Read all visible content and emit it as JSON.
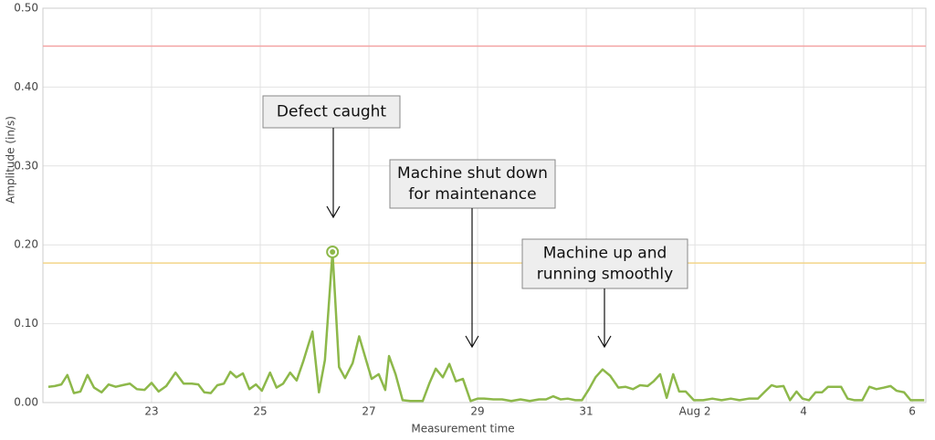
{
  "chart_data": {
    "type": "line",
    "x_label": "Measurement time",
    "y_label": "Amplitude (in/s)",
    "xlim": [
      21,
      37.25
    ],
    "ylim": [
      0,
      0.5
    ],
    "xticks": [
      23,
      25,
      27,
      29,
      31,
      {
        "value": 33,
        "label": "Aug 2"
      },
      {
        "value": 35,
        "label": "4"
      },
      {
        "value": 37,
        "label": "6"
      }
    ],
    "yticks": [
      {
        "value": 0,
        "label": "0.00"
      },
      {
        "value": 0.1,
        "label": "0.10"
      },
      {
        "value": 0.2,
        "label": "0.20"
      },
      {
        "value": 0.3,
        "label": "0.30"
      },
      {
        "value": 0.4,
        "label": "0.40"
      },
      {
        "value": 0.5,
        "label": "0.50"
      }
    ],
    "grid": true,
    "thresholds": [
      {
        "value": 0.452,
        "color": "#f4a3a3"
      },
      {
        "value": 0.177,
        "color": "#f3d58a"
      }
    ],
    "highlight_index": 41,
    "x": [
      21.1,
      21.22,
      21.34,
      21.45,
      21.57,
      21.69,
      21.82,
      21.94,
      22.08,
      22.21,
      22.34,
      22.46,
      22.6,
      22.73,
      22.87,
      23.0,
      23.13,
      23.27,
      23.44,
      23.59,
      23.74,
      23.86,
      23.97,
      24.09,
      24.21,
      24.33,
      24.45,
      24.56,
      24.68,
      24.8,
      24.92,
      25.03,
      25.18,
      25.3,
      25.42,
      25.55,
      25.67,
      25.79,
      25.96,
      26.08,
      26.19,
      26.33,
      26.45,
      26.56,
      26.7,
      26.82,
      26.93,
      27.05,
      27.18,
      27.3,
      27.37,
      27.49,
      27.62,
      27.76,
      27.87,
      27.99,
      28.11,
      28.23,
      28.36,
      28.48,
      28.6,
      28.73,
      28.87,
      29.0,
      29.12,
      29.29,
      29.45,
      29.62,
      29.79,
      29.96,
      30.13,
      30.26,
      30.39,
      30.53,
      30.66,
      30.8,
      30.92,
      31.05,
      31.17,
      31.3,
      31.44,
      31.59,
      31.72,
      31.86,
      31.99,
      32.13,
      32.24,
      32.36,
      32.48,
      32.6,
      32.71,
      32.83,
      32.98,
      33.15,
      33.32,
      33.49,
      33.66,
      33.82,
      33.99,
      34.16,
      34.29,
      34.41,
      34.5,
      34.63,
      34.75,
      34.87,
      34.98,
      35.1,
      35.22,
      35.34,
      35.45,
      35.57,
      35.69,
      35.81,
      35.94,
      36.08,
      36.21,
      36.34,
      36.48,
      36.6,
      36.71,
      36.85,
      36.97,
      37.1,
      37.22
    ],
    "series": [
      {
        "name": "Amplitude",
        "color": "#8db84a",
        "values": [
          0.02,
          0.021,
          0.023,
          0.035,
          0.012,
          0.014,
          0.035,
          0.019,
          0.013,
          0.023,
          0.02,
          0.022,
          0.024,
          0.017,
          0.016,
          0.025,
          0.014,
          0.021,
          0.038,
          0.024,
          0.024,
          0.023,
          0.013,
          0.012,
          0.022,
          0.024,
          0.039,
          0.032,
          0.037,
          0.017,
          0.023,
          0.015,
          0.038,
          0.019,
          0.024,
          0.038,
          0.028,
          0.052,
          0.09,
          0.013,
          0.054,
          0.191,
          0.045,
          0.031,
          0.05,
          0.084,
          0.058,
          0.03,
          0.036,
          0.016,
          0.059,
          0.036,
          0.003,
          0.002,
          0.002,
          0.002,
          0.024,
          0.043,
          0.032,
          0.049,
          0.027,
          0.03,
          0.002,
          0.005,
          0.005,
          0.004,
          0.004,
          0.002,
          0.004,
          0.002,
          0.004,
          0.004,
          0.008,
          0.004,
          0.005,
          0.003,
          0.003,
          0.017,
          0.032,
          0.042,
          0.034,
          0.019,
          0.02,
          0.017,
          0.022,
          0.021,
          0.027,
          0.036,
          0.006,
          0.036,
          0.014,
          0.014,
          0.003,
          0.003,
          0.005,
          0.003,
          0.005,
          0.003,
          0.005,
          0.005,
          0.014,
          0.022,
          0.02,
          0.021,
          0.003,
          0.014,
          0.005,
          0.003,
          0.013,
          0.013,
          0.02,
          0.02,
          0.02,
          0.005,
          0.003,
          0.003,
          0.02,
          0.017,
          0.019,
          0.021,
          0.015,
          0.013,
          0.003,
          0.003,
          0.003
        ]
      }
    ],
    "annotations": [
      {
        "lines": [
          "Defect caught"
        ]
      },
      {
        "lines": [
          "Machine shut down",
          "for maintenance"
        ]
      },
      {
        "lines": [
          "Machine up and",
          "running smoothly"
        ]
      }
    ]
  }
}
